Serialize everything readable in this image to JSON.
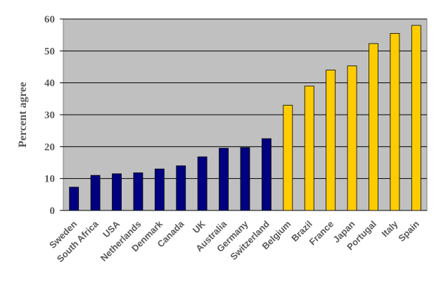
{
  "chart_data": {
    "type": "bar",
    "title": "",
    "xlabel": "",
    "ylabel": "Percent agree",
    "ylim": [
      0,
      60
    ],
    "yticks": [
      0,
      10,
      20,
      30,
      40,
      50,
      60
    ],
    "grid": true,
    "categories": [
      "Sweden",
      "South Africa",
      "USA",
      "Netherlands",
      "Denmark",
      "Canada",
      "UK",
      "Australia",
      "Germany",
      "Switzerland",
      "Belgium",
      "Brazil",
      "France",
      "Japan",
      "Portugal",
      "Italy",
      "Spain"
    ],
    "values": [
      7.3,
      11,
      11.5,
      11.8,
      13,
      14,
      16.8,
      19.5,
      19.7,
      22.5,
      33,
      39,
      44,
      45.3,
      52.3,
      55.5,
      58
    ],
    "groups": [
      "low",
      "low",
      "low",
      "low",
      "low",
      "low",
      "low",
      "low",
      "low",
      "low",
      "high",
      "high",
      "high",
      "high",
      "high",
      "high",
      "high"
    ],
    "colors": {
      "low": "#000080",
      "high": "#FFCC00",
      "plot_background": "#C0C0C0",
      "gridline": "#000000"
    }
  }
}
